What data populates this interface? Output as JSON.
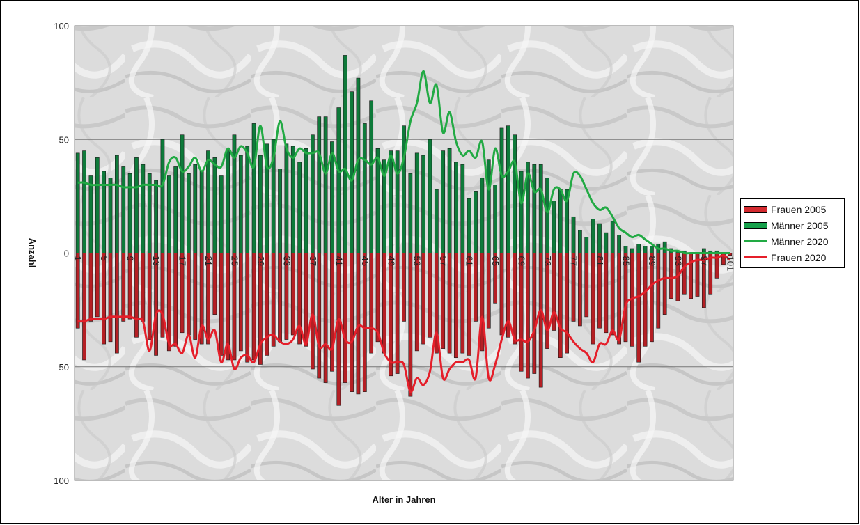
{
  "chart_data": {
    "type": "bar",
    "xlabel": "Alter in Jahren",
    "ylabel": "Anzahl",
    "ylim": [
      -100,
      100
    ],
    "y_ticks": [
      {
        "value": 100,
        "label": "100"
      },
      {
        "value": 50,
        "label": "50"
      },
      {
        "value": 0,
        "label": "0"
      },
      {
        "value": -50,
        "label": "50"
      },
      {
        "value": -100,
        "label": "100"
      }
    ],
    "x_tick_labels": [
      "1",
      "5",
      "9",
      "13",
      "17",
      "21",
      "25",
      "29",
      "33",
      "37",
      "41",
      "45",
      "49",
      "53",
      "57",
      "61",
      "65",
      "69",
      "73",
      "77",
      "81",
      "85",
      "89",
      "93",
      "97",
      "101"
    ],
    "x": [
      1,
      2,
      3,
      4,
      5,
      6,
      7,
      8,
      9,
      10,
      11,
      12,
      13,
      14,
      15,
      16,
      17,
      18,
      19,
      20,
      21,
      22,
      23,
      24,
      25,
      26,
      27,
      28,
      29,
      30,
      31,
      32,
      33,
      34,
      35,
      36,
      37,
      38,
      39,
      40,
      41,
      42,
      43,
      44,
      45,
      46,
      47,
      48,
      49,
      50,
      51,
      52,
      53,
      54,
      55,
      56,
      57,
      58,
      59,
      60,
      61,
      62,
      63,
      64,
      65,
      66,
      67,
      68,
      69,
      70,
      71,
      72,
      73,
      74,
      75,
      76,
      77,
      78,
      79,
      80,
      81,
      82,
      83,
      84,
      85,
      86,
      87,
      88,
      89,
      90,
      91,
      92,
      93,
      94,
      95,
      96,
      97,
      98,
      99,
      100,
      101
    ],
    "legend_position": "right",
    "grid": true,
    "series": [
      {
        "name": "Frauen 2005",
        "kind": "bar",
        "color": "#b51f24",
        "values": [
          -33,
          -47,
          -30,
          -28,
          -40,
          -39,
          -44,
          -30,
          -29,
          -37,
          -30,
          -38,
          -45,
          -37,
          -43,
          -41,
          -35,
          -36,
          -38,
          -40,
          -40,
          -27,
          -45,
          -47,
          -47,
          -43,
          -48,
          -47,
          -49,
          -45,
          -41,
          -39,
          -38,
          -36,
          -40,
          -41,
          -51,
          -55,
          -57,
          -52,
          -67,
          -57,
          -61,
          -62,
          -61,
          -44,
          -39,
          -44,
          -54,
          -53,
          -30,
          -63,
          -43,
          -40,
          -37,
          -44,
          -42,
          -44,
          -46,
          -44,
          -45,
          -30,
          -43,
          -33,
          -22,
          -36,
          -37,
          -40,
          -52,
          -55,
          -53,
          -59,
          -42,
          -34,
          -46,
          -44,
          -30,
          -32,
          -28,
          -40,
          -33,
          -35,
          -36,
          -40,
          -39,
          -41,
          -48,
          -41,
          -39,
          -33,
          -27,
          -20,
          -21,
          -18,
          -20,
          -19,
          -24,
          -18,
          -11,
          -5,
          -1
        ]
      },
      {
        "name": "Männer 2005",
        "kind": "bar",
        "color": "#0e7a3a",
        "values": [
          44,
          45,
          34,
          42,
          36,
          33,
          43,
          38,
          35,
          42,
          39,
          35,
          32,
          50,
          34,
          38,
          52,
          35,
          39,
          36,
          45,
          42,
          34,
          45,
          52,
          43,
          47,
          57,
          43,
          48,
          50,
          37,
          48,
          47,
          40,
          46,
          52,
          60,
          60,
          49,
          64,
          87,
          71,
          77,
          57,
          67,
          46,
          41,
          45,
          45,
          56,
          35,
          44,
          43,
          50,
          28,
          45,
          46,
          40,
          39,
          24,
          27,
          33,
          41,
          30,
          55,
          56,
          52,
          36,
          40,
          39,
          39,
          33,
          23,
          28,
          28,
          16,
          10,
          7,
          15,
          13,
          9,
          14,
          8,
          3,
          2,
          4,
          3,
          3,
          4,
          5,
          2,
          1,
          1,
          0,
          0,
          2,
          1,
          1,
          0,
          0
        ]
      },
      {
        "name": "Männer 2020",
        "kind": "line",
        "color": "#22aa44",
        "values": [
          31,
          31,
          30,
          30,
          30,
          30,
          30,
          29,
          29,
          29,
          30,
          30,
          30,
          30,
          40,
          42,
          36,
          38,
          42,
          36,
          41,
          39,
          38,
          46,
          42,
          47,
          44,
          38,
          56,
          38,
          42,
          58,
          46,
          42,
          46,
          44,
          44,
          44,
          35,
          44,
          36,
          37,
          32,
          41,
          41,
          39,
          42,
          34,
          43,
          35,
          42,
          58,
          66,
          80,
          66,
          74,
          53,
          62,
          49,
          43,
          45,
          42,
          49,
          28,
          46,
          34,
          36,
          40,
          22,
          35,
          27,
          28,
          18,
          28,
          28,
          23,
          35,
          34,
          28,
          22,
          19,
          20,
          16,
          11,
          9,
          7,
          8,
          6,
          4,
          2,
          2,
          1,
          1,
          0,
          0,
          0,
          0,
          0,
          0,
          0,
          0
        ]
      },
      {
        "name": "Frauen 2020",
        "kind": "line",
        "color": "#e51f2a",
        "values": [
          -30,
          -30,
          -29,
          -29,
          -29,
          -28,
          -28,
          -28,
          -28,
          -29,
          -30,
          -43,
          -27,
          -27,
          -40,
          -40,
          -44,
          -36,
          -46,
          -32,
          -38,
          -34,
          -48,
          -40,
          -51,
          -46,
          -45,
          -48,
          -40,
          -37,
          -36,
          -39,
          -40,
          -38,
          -32,
          -40,
          -27,
          -41,
          -40,
          -42,
          -29,
          -38,
          -39,
          -32,
          -33,
          -33,
          -35,
          -44,
          -48,
          -48,
          -49,
          -61,
          -55,
          -58,
          -52,
          -35,
          -55,
          -51,
          -48,
          -48,
          -47,
          -55,
          -28,
          -55,
          -49,
          -38,
          -30,
          -38,
          -38,
          -39,
          -34,
          -25,
          -34,
          -26,
          -33,
          -35,
          -39,
          -42,
          -44,
          -48,
          -40,
          -40,
          -34,
          -38,
          -23,
          -20,
          -19,
          -17,
          -14,
          -12,
          -11,
          -11,
          -10,
          -6,
          -4,
          -3,
          -3,
          -2,
          -2,
          -1,
          -3
        ]
      }
    ]
  }
}
